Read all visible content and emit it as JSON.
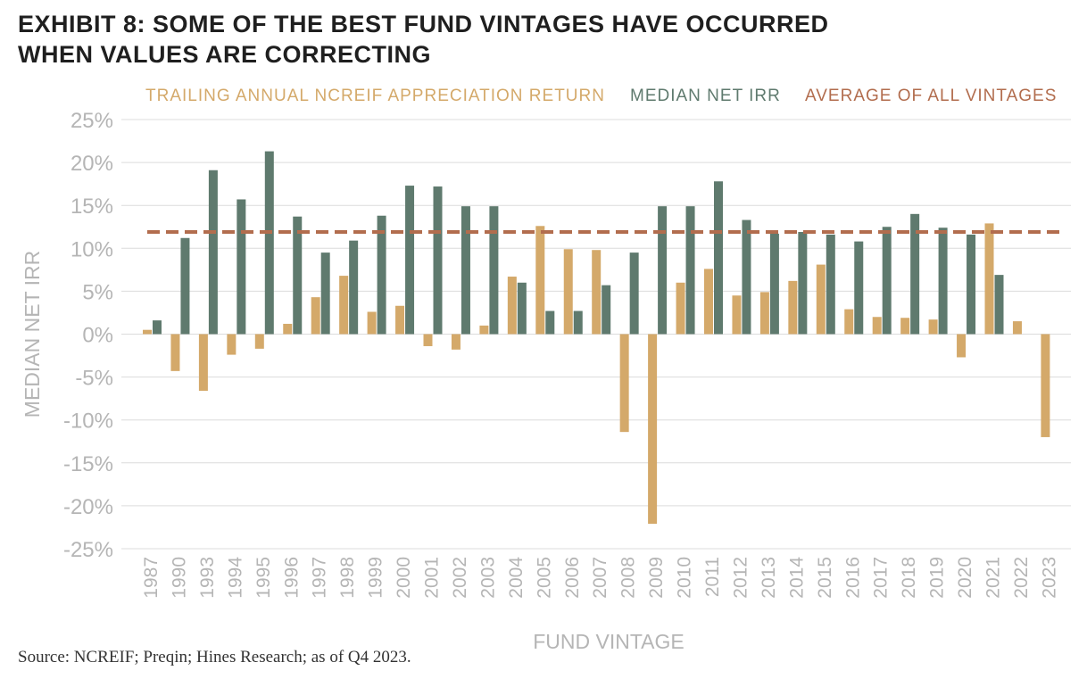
{
  "title": {
    "line1": "EXHIBIT 8: SOME OF THE BEST FUND VINTAGES HAVE OCCURRED",
    "line2": "WHEN VALUES ARE CORRECTING"
  },
  "source": "Source: NCREIF; Preqin; Hines Research; as of Q4 2023.",
  "colors": {
    "appreciation": "#d4a96a",
    "irr": "#5f7a6e",
    "average": "#b26d4e",
    "grid": "#dcdcdc",
    "axis_text": "#b5b5b5"
  },
  "chart_data": {
    "type": "bar",
    "xlabel": "FUND VINTAGE",
    "ylabel": "MEDIAN NET IRR",
    "ylim": [
      -25,
      25
    ],
    "yticks": [
      25,
      20,
      15,
      10,
      5,
      0,
      -5,
      -10,
      -15,
      -20,
      -25
    ],
    "ytick_labels": [
      "25%",
      "20%",
      "15%",
      "10%",
      "5%",
      "0%",
      "-5%",
      "-10%",
      "-15%",
      "-20%",
      "-25%"
    ],
    "grid": true,
    "legend_position": "top",
    "categories": [
      "1987",
      "1990",
      "1993",
      "1994",
      "1995",
      "1996",
      "1997",
      "1998",
      "1999",
      "2000",
      "2001",
      "2002",
      "2003",
      "2004",
      "2005",
      "2006",
      "2007",
      "2008",
      "2009",
      "2010",
      "2011",
      "2012",
      "2013",
      "2014",
      "2015",
      "2016",
      "2017",
      "2018",
      "2019",
      "2020",
      "2021",
      "2022",
      "2023"
    ],
    "series": [
      {
        "name": "TRAILING ANNUAL NCREIF APPRECIATION RETURN",
        "values": [
          0.5,
          -4.3,
          -6.6,
          -2.4,
          -1.7,
          1.2,
          4.3,
          6.8,
          2.6,
          3.3,
          -1.4,
          -1.8,
          1.0,
          6.7,
          12.6,
          9.9,
          9.8,
          -11.4,
          -22.1,
          6.0,
          7.6,
          4.5,
          4.9,
          6.2,
          8.1,
          2.9,
          2.0,
          1.9,
          1.7,
          -2.7,
          12.9,
          1.5,
          -12.0
        ]
      },
      {
        "name": "MEDIAN NET IRR",
        "values": [
          1.6,
          11.2,
          19.1,
          15.7,
          21.3,
          13.7,
          9.5,
          10.9,
          13.8,
          17.3,
          17.2,
          14.9,
          14.9,
          6.0,
          2.7,
          2.7,
          5.7,
          9.5,
          14.9,
          14.9,
          17.8,
          13.3,
          11.7,
          11.9,
          11.6,
          10.8,
          12.5,
          14.0,
          12.4,
          11.6,
          6.9,
          null,
          null
        ]
      },
      {
        "name": "AVERAGE OF ALL VINTAGES",
        "value": 11.9
      }
    ]
  }
}
